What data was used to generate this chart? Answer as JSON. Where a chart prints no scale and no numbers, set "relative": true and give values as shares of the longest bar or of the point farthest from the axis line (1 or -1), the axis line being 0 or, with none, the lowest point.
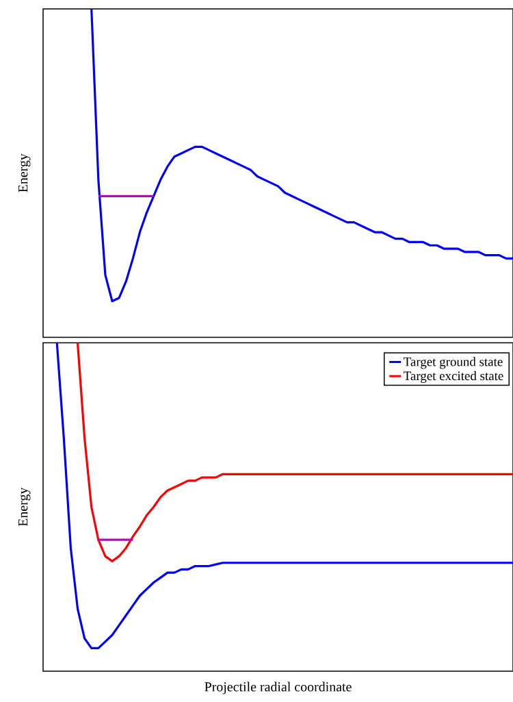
{
  "chart_data": [
    {
      "type": "line",
      "relative": true,
      "ylabel": "Energy",
      "categories": [
        null,
        null,
        null,
        null,
        null,
        null,
        null,
        null,
        null,
        null,
        null,
        null,
        null,
        null,
        null,
        null,
        null,
        null,
        null,
        null,
        null,
        null,
        null,
        null,
        null,
        null,
        null,
        null,
        null,
        null,
        null,
        null,
        null,
        null,
        null,
        null,
        null,
        null,
        null,
        null,
        null,
        null,
        null,
        null,
        null,
        null,
        null,
        null,
        null,
        null,
        null,
        null,
        null,
        null,
        null,
        null,
        null,
        null,
        null,
        null,
        null,
        null,
        null,
        null,
        null,
        null,
        null,
        null,
        null
      ],
      "series": [
        {
          "color": "#0000ff",
          "values": [
            null,
            null,
            null,
            null,
            null,
            null,
            null,
            1.0,
            0.48,
            0.19,
            0.11,
            0.12,
            0.17,
            0.24,
            0.32,
            0.38,
            0.43,
            0.48,
            0.52,
            0.55,
            0.56,
            0.57,
            0.58,
            0.58,
            0.57,
            0.56,
            0.55,
            0.54,
            0.53,
            0.52,
            0.51,
            0.49,
            0.48,
            0.47,
            0.46,
            0.44,
            0.43,
            0.42,
            0.41,
            0.4,
            0.39,
            0.38,
            0.37,
            0.36,
            0.35,
            0.35,
            0.34,
            0.33,
            0.32,
            0.32,
            0.31,
            0.3,
            0.3,
            0.29,
            0.29,
            0.29,
            0.28,
            0.28,
            0.27,
            0.27,
            0.27,
            0.26,
            0.26,
            0.26,
            0.25,
            0.25,
            0.25,
            0.24,
            0.24
          ]
        },
        {
          "color": "#bf00bf",
          "values": [
            null,
            null,
            null,
            null,
            null,
            null,
            null,
            null,
            0.43,
            0.43,
            0.43,
            0.43,
            0.43,
            0.43,
            0.43,
            0.43,
            0.43,
            null,
            null,
            null,
            null,
            null,
            null,
            null,
            null,
            null,
            null,
            null,
            null,
            null,
            null,
            null,
            null,
            null,
            null,
            null,
            null,
            null,
            null,
            null,
            null,
            null,
            null,
            null,
            null,
            null,
            null,
            null,
            null,
            null,
            null,
            null,
            null,
            null,
            null,
            null,
            null,
            null,
            null,
            null,
            null,
            null,
            null,
            null,
            null,
            null,
            null,
            null,
            null
          ]
        }
      ]
    },
    {
      "type": "line",
      "relative": true,
      "ylabel": "Energy",
      "xlabel": "Projectile radial coordinate",
      "legend": "top right",
      "categories": [
        null,
        null,
        null,
        null,
        null,
        null,
        null,
        null,
        null,
        null,
        null,
        null,
        null,
        null,
        null,
        null,
        null,
        null,
        null,
        null,
        null,
        null,
        null,
        null,
        null,
        null,
        null,
        null,
        null,
        null,
        null,
        null,
        null,
        null,
        null,
        null,
        null,
        null,
        null,
        null,
        null,
        null,
        null,
        null,
        null,
        null,
        null,
        null,
        null,
        null,
        null,
        null,
        null,
        null,
        null,
        null,
        null,
        null,
        null,
        null,
        null,
        null,
        null,
        null,
        null,
        null,
        null,
        null,
        null
      ],
      "series": [
        {
          "name": "Target ground state",
          "color": "#0000ff",
          "values": [
            null,
            null,
            1.0,
            0.71,
            0.375,
            0.19,
            0.1,
            0.07,
            0.07,
            0.09,
            0.11,
            0.14,
            0.17,
            0.2,
            0.23,
            0.25,
            0.27,
            0.285,
            0.3,
            0.3,
            0.31,
            0.31,
            0.32,
            0.32,
            0.32,
            0.325,
            0.33,
            0.33,
            0.33,
            0.33,
            0.33,
            0.33,
            0.33,
            0.33,
            0.33,
            0.33,
            0.33,
            0.33,
            0.33,
            0.33,
            0.33,
            0.33,
            0.33,
            0.33,
            0.33,
            0.33,
            0.33,
            0.33,
            0.33,
            0.33,
            0.33,
            0.33,
            0.33,
            0.33,
            0.33,
            0.33,
            0.33,
            0.33,
            0.33,
            0.33,
            0.33,
            0.33,
            0.33,
            0.33,
            0.33,
            0.33,
            0.33,
            0.33,
            0.33
          ]
        },
        {
          "name": "Target excited state",
          "color": "#ff0000",
          "values": [
            null,
            null,
            null,
            null,
            null,
            1.0,
            0.71,
            0.5,
            0.4,
            0.35,
            0.335,
            0.35,
            0.375,
            0.41,
            0.44,
            0.475,
            0.5,
            0.53,
            0.55,
            0.56,
            0.57,
            0.58,
            0.58,
            0.59,
            0.59,
            0.59,
            0.6,
            0.6,
            0.6,
            0.6,
            0.6,
            0.6,
            0.6,
            0.6,
            0.6,
            0.6,
            0.6,
            0.6,
            0.6,
            0.6,
            0.6,
            0.6,
            0.6,
            0.6,
            0.6,
            0.6,
            0.6,
            0.6,
            0.6,
            0.6,
            0.6,
            0.6,
            0.6,
            0.6,
            0.6,
            0.6,
            0.6,
            0.6,
            0.6,
            0.6,
            0.6,
            0.6,
            0.6,
            0.6,
            0.6,
            0.6,
            0.6,
            0.6,
            0.6
          ]
        },
        {
          "color": "#bf00bf",
          "values": [
            null,
            null,
            null,
            null,
            null,
            null,
            null,
            null,
            0.4,
            0.4,
            0.4,
            0.4,
            0.4,
            0.4,
            null,
            null,
            null,
            null,
            null,
            null,
            null,
            null,
            null,
            null,
            null,
            null,
            null,
            null,
            null,
            null,
            null,
            null,
            null,
            null,
            null,
            null,
            null,
            null,
            null,
            null,
            null,
            null,
            null,
            null,
            null,
            null,
            null,
            null,
            null,
            null,
            null,
            null,
            null,
            null,
            null,
            null,
            null,
            null,
            null,
            null,
            null,
            null,
            null,
            null,
            null,
            null,
            null,
            null,
            null
          ]
        }
      ]
    }
  ]
}
